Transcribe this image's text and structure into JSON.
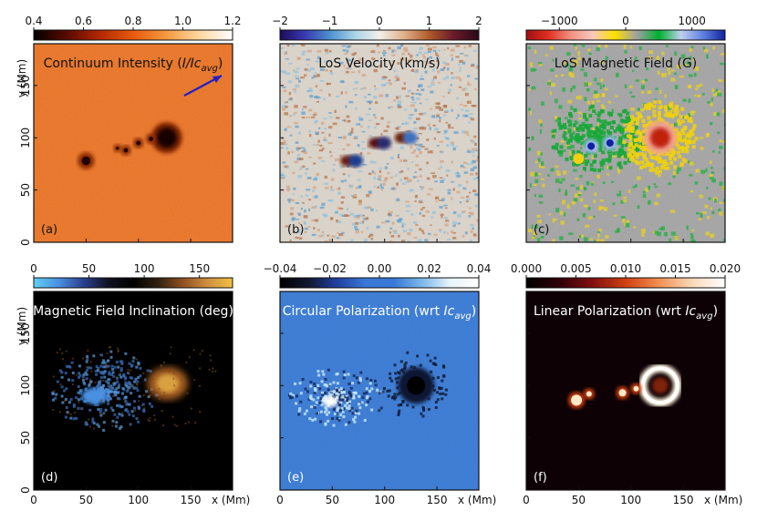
{
  "figure": {
    "x_axis_label": "x (Mm)",
    "y_axis_label": "y (Mm)",
    "x_ticks": [
      0,
      50,
      100,
      150
    ],
    "y_ticks": [
      0,
      50,
      100,
      150
    ]
  },
  "chart_data": [
    {
      "type": "heatmap",
      "panel": "(a)",
      "title_parts": [
        "Continuum Intensity (",
        "I/Ic",
        "avg",
        ")"
      ],
      "colormap": "afmhot",
      "colorbar": {
        "ticks": [
          "0.4",
          "0.6",
          "0.8",
          "1.0",
          "1.2"
        ],
        "range": [
          0.4,
          1.2
        ],
        "colors": [
          "#000000",
          "#5a0a00",
          "#b22800",
          "#e85a10",
          "#f59a40",
          "#fbd8a0",
          "#ffffff"
        ]
      },
      "background_color": "#ec7322",
      "arrow": {
        "color": "#2020c8"
      },
      "features": "sunspots"
    },
    {
      "type": "heatmap",
      "panel": "(b)",
      "title_parts": [
        "LoS Velocity (km/s)"
      ],
      "colormap": "diverging",
      "colorbar": {
        "ticks": [
          "−2",
          "−1",
          "0",
          "1",
          "2"
        ],
        "range": [
          -2,
          2
        ],
        "colors": [
          "#1a0a5a",
          "#3a3ab0",
          "#4a90d0",
          "#a8d4e6",
          "#f2f0ec",
          "#e0b08a",
          "#b05a2a",
          "#6a1a2a",
          "#2a0818"
        ]
      },
      "background_color": "#d9d3ca"
    },
    {
      "type": "heatmap",
      "panel": "(c)",
      "title_parts": [
        "LoS Magnetic Field (G)"
      ],
      "colormap": "segmented",
      "colorbar": {
        "ticks": [
          "−1000",
          "0",
          "1000"
        ],
        "range": [
          -1500,
          1500
        ],
        "colors": [
          "#a01010",
          "#e03020",
          "#f09080",
          "#f8c8c0",
          "#ffe000",
          "#a0a0a0",
          "#00b030",
          "#c0d0f0",
          "#6080e0",
          "#1020a0"
        ]
      },
      "background_color": "#a4a4a4"
    },
    {
      "type": "heatmap",
      "panel": "(d)",
      "title_parts": [
        "Magnetic Field Inclination (deg)"
      ],
      "colormap": "diverging-dark",
      "colorbar": {
        "ticks": [
          "0",
          "50",
          "100",
          "150"
        ],
        "range": [
          0,
          180
        ],
        "colors": [
          "#60d0f0",
          "#4a90e0",
          "#2a4090",
          "#101020",
          "#000000",
          "#302010",
          "#905020",
          "#d09040",
          "#f0c040"
        ]
      },
      "background_color": "#000000"
    },
    {
      "type": "heatmap",
      "panel": "(e)",
      "title_parts": [
        "Circular Polarization (wrt ",
        "Ic",
        "avg",
        ")"
      ],
      "colormap": "blue-diverging",
      "colorbar": {
        "ticks": [
          "−0.04",
          "−0.02",
          "0.00",
          "0.02",
          "0.04"
        ],
        "range": [
          -0.04,
          0.04
        ],
        "colors": [
          "#000000",
          "#101830",
          "#2040a0",
          "#3a78d8",
          "#3a78d8",
          "#7ab8e8",
          "#e8f4fa",
          "#ffffff"
        ]
      },
      "background_color": "#3a7bd5"
    },
    {
      "type": "heatmap",
      "panel": "(f)",
      "title_parts": [
        "Linear Polarization (wrt ",
        "Ic",
        "avg",
        ")"
      ],
      "colormap": "gist_heat",
      "colorbar": {
        "ticks": [
          "0.000",
          "0.005",
          "0.010",
          "0.015",
          "0.020"
        ],
        "range": [
          0,
          0.02
        ],
        "colors": [
          "#000000",
          "#300008",
          "#801010",
          "#d04010",
          "#f09050",
          "#fad8b8",
          "#ffffff"
        ]
      },
      "background_color": "#0e0106"
    }
  ]
}
